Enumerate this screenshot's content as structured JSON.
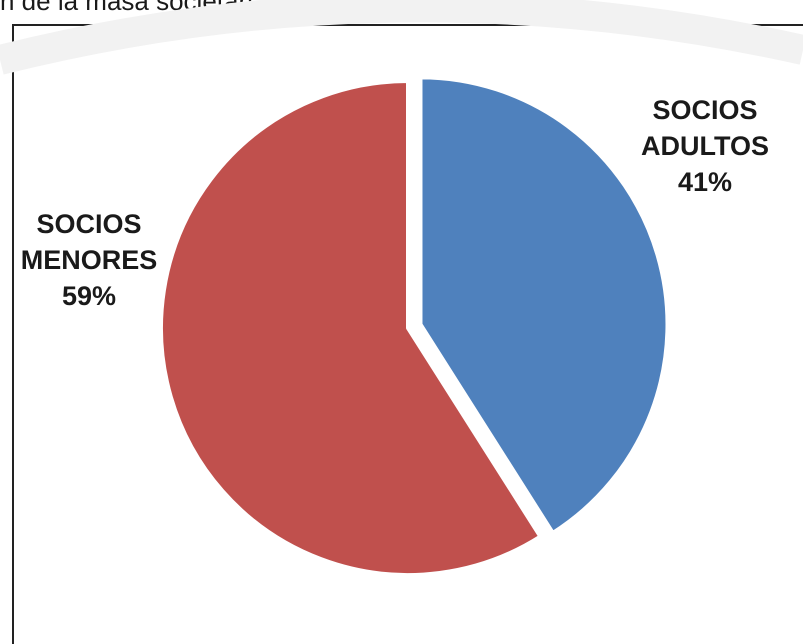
{
  "chart_data": {
    "type": "pie",
    "title": "n de la  masa societaria según rangos de edad",
    "slices": [
      {
        "name": "SOCIOS ADULTOS",
        "value": 41,
        "label": "41%",
        "color": "#4f81bd",
        "label_line1": "SOCIOS",
        "label_line2": "ADULTOS",
        "exploded": true
      },
      {
        "name": "SOCIOS MENORES",
        "value": 59,
        "label": "59%",
        "color": "#c0504d",
        "label_line1": "SOCIOS",
        "label_line2": "MENORES",
        "exploded": false
      }
    ],
    "legend": "none"
  }
}
